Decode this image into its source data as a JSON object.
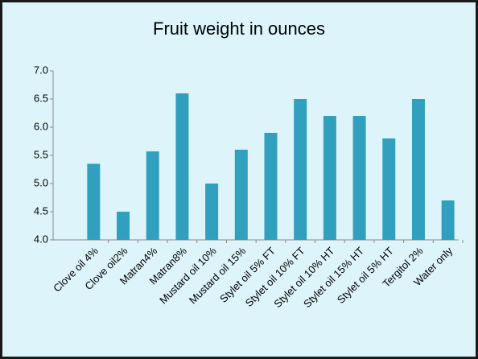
{
  "chart_data": {
    "type": "bar",
    "title": "Fruit weight in ounces",
    "categories": [
      "Clove oil 4%",
      "Clove oil2%",
      "Matran4%",
      "Matran8%",
      "Mustard oil 10%",
      "Mustard oil 15%",
      "Stylet oil 5% FT",
      "Stylet oil 10% FT",
      "Stylet oil 10% HT",
      "Stylet oil 15% HT",
      "Stylet oil 5% HT",
      "Tergitol 2%",
      "Water only"
    ],
    "values": [
      5.35,
      4.5,
      5.57,
      6.6,
      5.0,
      5.6,
      5.9,
      6.5,
      6.2,
      6.2,
      5.8,
      6.5,
      4.7
    ],
    "color": "#31a0be",
    "ylim": [
      4,
      7
    ],
    "yticks": [
      {
        "value": 4,
        "label": "4.0"
      },
      4.5,
      {
        "value": 5,
        "label": "5.0"
      },
      5.5,
      {
        "value": 6,
        "label": "6.0"
      },
      6.5,
      {
        "value": 7,
        "label": "7.0"
      }
    ],
    "grid": false
  }
}
